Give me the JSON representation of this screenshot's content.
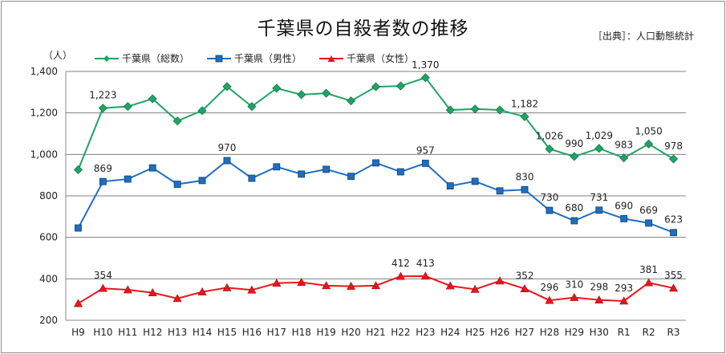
{
  "chart_data": {
    "type": "line",
    "title": "千葉県の自殺者数の推移",
    "source": "［出典］：人口動態統計",
    "ylabel": "（人）",
    "ylim": [
      200,
      1400
    ],
    "yticks": [
      200,
      400,
      600,
      800,
      1000,
      1200,
      1400
    ],
    "ytick_labels": [
      "200",
      "400",
      "600",
      "800",
      "1,000",
      "1,200",
      "1,400"
    ],
    "grid": true,
    "legend_position": "top-left",
    "categories": [
      "H9",
      "H10",
      "H11",
      "H12",
      "H13",
      "H14",
      "H15",
      "H16",
      "H17",
      "H18",
      "H19",
      "H20",
      "H21",
      "H22",
      "H23",
      "H24",
      "H25",
      "H26",
      "H27",
      "H28",
      "H29",
      "H30",
      "R1",
      "R2",
      "R3"
    ],
    "series": [
      {
        "name": "千葉県（総数）",
        "color": "#21a366",
        "marker": "diamond",
        "values": [
          926,
          1223,
          1231,
          1268,
          1161,
          1211,
          1327,
          1231,
          1319,
          1288,
          1295,
          1258,
          1326,
          1330,
          1370,
          1214,
          1219,
          1214,
          1182,
          1026,
          990,
          1029,
          983,
          1050,
          978
        ],
        "labels": [
          "",
          "1,223",
          "",
          "",
          "",
          "",
          "",
          "",
          "",
          "",
          "",
          "",
          "",
          "",
          "1,370",
          "",
          "",
          "",
          "1,182",
          "1,026",
          "990",
          "1,029",
          "983",
          "1,050",
          "978"
        ]
      },
      {
        "name": "千葉県（男性）",
        "color": "#1f6fbf",
        "marker": "square",
        "values": [
          645,
          869,
          881,
          935,
          856,
          874,
          970,
          885,
          940,
          905,
          928,
          894,
          959,
          916,
          957,
          848,
          870,
          824,
          830,
          730,
          680,
          731,
          690,
          669,
          623
        ],
        "labels": [
          "",
          "869",
          "",
          "",
          "",
          "",
          "970",
          "",
          "",
          "",
          "",
          "",
          "",
          "",
          "957",
          "",
          "",
          "",
          "830",
          "730",
          "680",
          "731",
          "690",
          "669",
          "623"
        ]
      },
      {
        "name": "千葉県（女性）",
        "color": "#e8161b",
        "marker": "triangle",
        "values": [
          281,
          354,
          347,
          333,
          305,
          337,
          357,
          346,
          379,
          383,
          367,
          364,
          367,
          412,
          413,
          366,
          349,
          390,
          352,
          296,
          310,
          298,
          293,
          381,
          355
        ],
        "labels": [
          "",
          "354",
          "",
          "",
          "",
          "",
          "",
          "",
          "",
          "",
          "",
          "",
          "",
          "412",
          "413",
          "",
          "",
          "",
          "352",
          "296",
          "310",
          "298",
          "293",
          "381",
          "355"
        ]
      }
    ]
  }
}
